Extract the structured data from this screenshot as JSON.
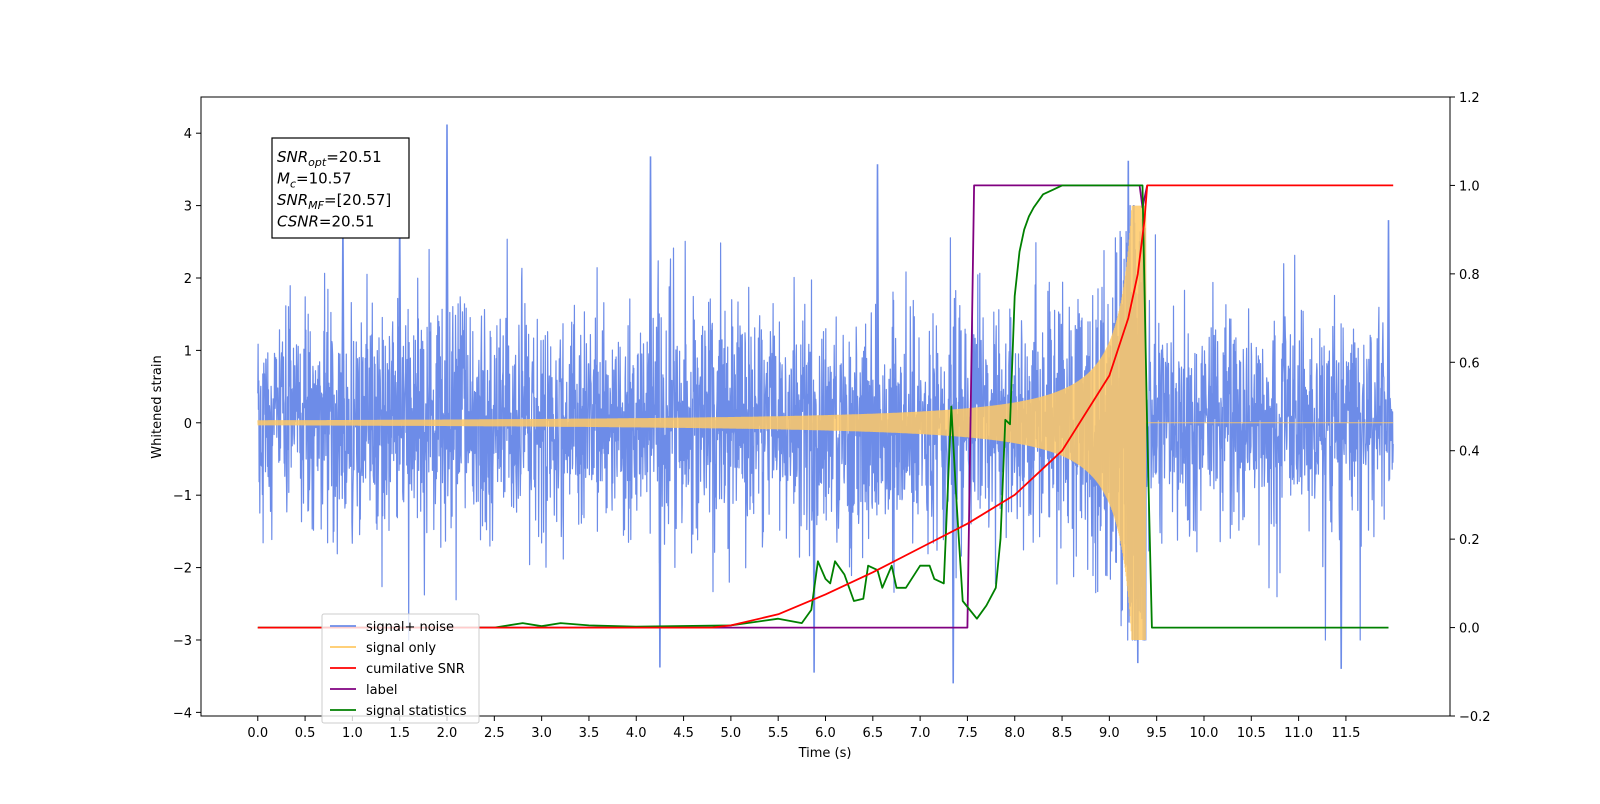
{
  "chart_data": {
    "type": "line",
    "title": "",
    "xlabel": "Time (s)",
    "ylabel_left": "Whitened strain",
    "ylabel_right": "",
    "xlim": [
      -0.6,
      12.6
    ],
    "ylim_left": [
      -4.05,
      4.5
    ],
    "ylim_right": [
      -0.2,
      1.2
    ],
    "x_ticks": [
      0.0,
      0.5,
      1.0,
      1.5,
      2.0,
      2.5,
      3.0,
      3.5,
      4.0,
      4.5,
      5.0,
      5.5,
      6.0,
      6.5,
      7.0,
      7.5,
      8.0,
      8.5,
      9.0,
      9.5,
      10.0,
      10.5,
      11.0,
      11.5
    ],
    "x_tick_labels": [
      "0.0",
      "0.5",
      "1.0",
      "1.5",
      "2.0",
      "2.5",
      "3.0",
      "3.5",
      "4.0",
      "4.5",
      "5.0",
      "5.5",
      "6.0",
      "6.5",
      "7.0",
      "7.5",
      "8.0",
      "8.5",
      "9.0",
      "9.5",
      "10.0",
      "10.5",
      "11.0",
      "11.5"
    ],
    "y_left_ticks": [
      -4,
      -3,
      -2,
      -1,
      0,
      1,
      2,
      3,
      4
    ],
    "y_left_tick_labels": [
      "−4",
      "−3",
      "−2",
      "−1",
      "0",
      "1",
      "2",
      "3",
      "4"
    ],
    "y_right_ticks": [
      -0.2,
      0.0,
      0.2,
      0.4,
      0.6,
      0.8,
      1.0,
      1.2
    ],
    "y_right_tick_labels": [
      "−0.2",
      "0.0",
      "0.2",
      "0.4",
      "0.6",
      "0.8",
      "1.0",
      "1.2"
    ],
    "grid": false,
    "legend_position": "bottom-left",
    "legend": [
      {
        "label": "signal+ noise",
        "color": "#6d8ce8"
      },
      {
        "label": "signal only",
        "color": "#ffc966"
      },
      {
        "label": "cumilative SNR",
        "color": "#ff0000"
      },
      {
        "label": "label",
        "color": "#800080"
      },
      {
        "label": "signal statistics",
        "color": "#008000"
      }
    ],
    "annotation": {
      "lines": [
        {
          "sym": "SNR",
          "sub": "opt",
          "value": "=20.51"
        },
        {
          "sym": "M",
          "sub": "c",
          "value": "=10.57"
        },
        {
          "sym": "SNR",
          "sub": "MF",
          "value": "=[20.57]"
        },
        {
          "sym": "CSNR",
          "sub": "",
          "value": "=20.51"
        }
      ]
    },
    "series": [
      {
        "name": "signal+ noise",
        "axis": "left",
        "color": "#6d8ce8",
        "description": "whitened noise plus chirp, spans t=0 to 12.0 s, typical amplitude ±2, peaks ~4.1 at t≈2.0",
        "x_range": [
          0.0,
          12.0
        ],
        "envelope": 2.0,
        "peaks": [
          {
            "x": 2.0,
            "y": 4.12
          },
          {
            "x": 4.15,
            "y": 3.68
          },
          {
            "x": 6.55,
            "y": 3.57
          },
          {
            "x": 9.2,
            "y": 3.62
          },
          {
            "x": 11.95,
            "y": 2.8
          },
          {
            "x": 7.35,
            "y": -3.6
          },
          {
            "x": 5.88,
            "y": -3.45
          },
          {
            "x": 4.25,
            "y": -3.38
          },
          {
            "x": 11.45,
            "y": -3.4
          },
          {
            "x": 9.3,
            "y": -3.32
          },
          {
            "x": 1.5,
            "y": 2.9
          },
          {
            "x": 0.9,
            "y": 2.8
          }
        ]
      },
      {
        "name": "signal only",
        "axis": "left",
        "color": "#ffc966",
        "description": "inspiral chirp: near zero until ~4.5 s, amplitude grows to ~3 at t≈9.38 s, then cuts to zero",
        "x_range": [
          0.0,
          12.0
        ],
        "tc": 9.4,
        "peak_amplitude": 3.0
      },
      {
        "name": "cumilative SNR",
        "axis": "right",
        "x": [
          0.0,
          4.8,
          5.0,
          5.5,
          6.0,
          6.5,
          7.0,
          7.5,
          8.0,
          8.5,
          9.0,
          9.2,
          9.3,
          9.37,
          9.4,
          12.0
        ],
        "y": [
          0.0,
          0.0,
          0.005,
          0.03,
          0.075,
          0.125,
          0.18,
          0.235,
          0.3,
          0.4,
          0.57,
          0.7,
          0.8,
          0.92,
          1.0,
          1.0
        ]
      },
      {
        "name": "label",
        "axis": "right",
        "x": [
          0.7,
          7.5,
          7.57,
          9.32,
          9.35,
          9.4
        ],
        "y": [
          0.0,
          0.0,
          1.0,
          1.0,
          0.95,
          1.0
        ]
      },
      {
        "name": "signal statistics",
        "axis": "right",
        "x": [
          0.0,
          2.5,
          2.8,
          3.0,
          3.2,
          3.5,
          4.0,
          5.0,
          5.5,
          5.75,
          5.85,
          5.92,
          6.0,
          6.05,
          6.1,
          6.2,
          6.3,
          6.4,
          6.45,
          6.55,
          6.6,
          6.7,
          6.75,
          6.85,
          7.0,
          7.1,
          7.15,
          7.25,
          7.33,
          7.38,
          7.45,
          7.6,
          7.7,
          7.8,
          7.85,
          7.9,
          7.95,
          8.0,
          8.05,
          8.1,
          8.15,
          8.2,
          8.3,
          8.4,
          8.5,
          8.6,
          8.7,
          9.0,
          9.2,
          9.25,
          9.3,
          9.35,
          9.4,
          9.45,
          11.95
        ],
        "y": [
          0.0,
          0.0,
          0.01,
          0.003,
          0.01,
          0.005,
          0.002,
          0.005,
          0.02,
          0.01,
          0.04,
          0.15,
          0.11,
          0.1,
          0.15,
          0.12,
          0.06,
          0.065,
          0.14,
          0.13,
          0.09,
          0.14,
          0.09,
          0.09,
          0.14,
          0.14,
          0.11,
          0.1,
          0.5,
          0.3,
          0.06,
          0.02,
          0.05,
          0.09,
          0.2,
          0.47,
          0.46,
          0.75,
          0.85,
          0.9,
          0.93,
          0.95,
          0.98,
          0.99,
          1.0,
          1.0,
          1.0,
          1.0,
          1.0,
          1.0,
          1.0,
          1.0,
          0.45,
          0.0,
          0.0
        ]
      }
    ]
  }
}
